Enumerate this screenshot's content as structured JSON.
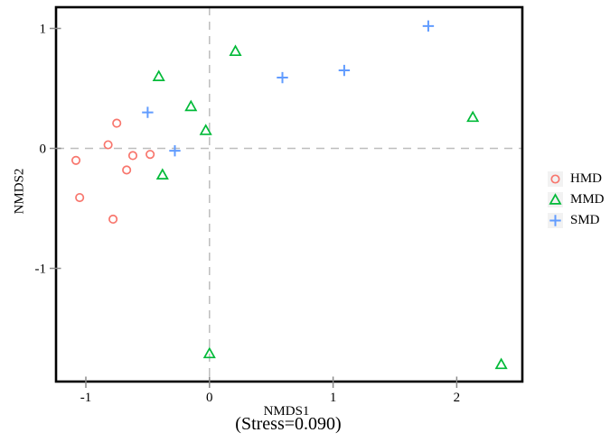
{
  "chart_data": {
    "type": "scatter",
    "title": "",
    "xlabel": "NMDS1",
    "ylabel": "NMDS2",
    "annotation": "(Stress=0.090)",
    "xlim": [
      -1.25,
      2.54
    ],
    "ylim": [
      -1.95,
      1.17
    ],
    "xticks": [
      -1,
      0,
      1,
      2
    ],
    "yticks": [
      -1,
      0,
      1
    ],
    "grid": "dashed gray reference lines at x=0 and y=0",
    "legend_position": "right-middle",
    "panel_border_color": "#000000",
    "reference_line_color": "#bdbdbd",
    "tick_color": "#8a8a8a",
    "legend_key_background": "#f2f2f2",
    "series": [
      {
        "name": "HMD",
        "marker": "circle-outline",
        "color": "#F8766D",
        "points": [
          [
            -0.75,
            0.21
          ],
          [
            -0.82,
            0.03
          ],
          [
            -1.08,
            -0.1
          ],
          [
            -0.62,
            -0.06
          ],
          [
            -0.48,
            -0.05
          ],
          [
            -0.67,
            -0.18
          ],
          [
            -1.05,
            -0.41
          ],
          [
            -0.78,
            -0.59
          ]
        ]
      },
      {
        "name": "MMD",
        "marker": "triangle-outline",
        "color": "#00BA38",
        "points": [
          [
            -0.41,
            0.6
          ],
          [
            -0.15,
            0.35
          ],
          [
            -0.03,
            0.15
          ],
          [
            0.21,
            0.81
          ],
          [
            -0.38,
            -0.22
          ],
          [
            2.13,
            0.26
          ],
          [
            0.0,
            -1.71
          ],
          [
            2.36,
            -1.8
          ]
        ]
      },
      {
        "name": "SMD",
        "marker": "plus",
        "color": "#619CFF",
        "points": [
          [
            -0.5,
            0.3
          ],
          [
            -0.28,
            -0.02
          ],
          [
            0.59,
            0.59
          ],
          [
            1.09,
            0.65
          ],
          [
            1.77,
            1.02
          ]
        ]
      }
    ]
  }
}
